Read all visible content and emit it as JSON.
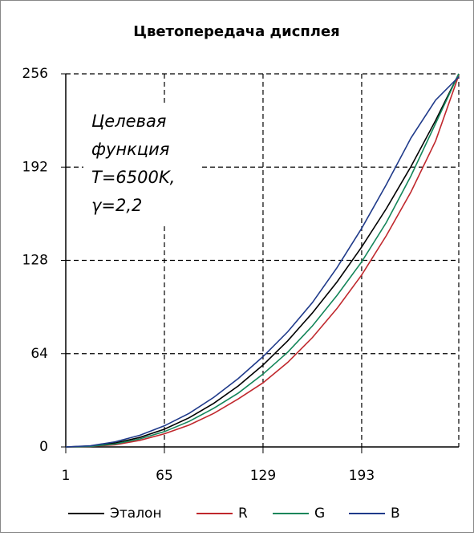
{
  "chart_data": {
    "type": "line",
    "title": "Цветопередача дисплея",
    "annotation": [
      "Целевая",
      "функция",
      "T=6500K,",
      "γ=2,2"
    ],
    "x": [
      1,
      17,
      33,
      49,
      65,
      81,
      97,
      113,
      129,
      145,
      161,
      177,
      193,
      209,
      225,
      241,
      256
    ],
    "series": [
      {
        "name": "Эталон",
        "color": "#000000",
        "values": [
          0,
          0.6,
          2.7,
          6.5,
          12.2,
          20,
          29.9,
          41.9,
          56.2,
          72.8,
          91.9,
          113.2,
          137.2,
          163.5,
          192.4,
          224.1,
          256
        ]
      },
      {
        "name": "R",
        "color": "#c0282d",
        "values": [
          0,
          0.3,
          1.5,
          4.5,
          9,
          15,
          23,
          33,
          44,
          58,
          75,
          95,
          118,
          145,
          175,
          210,
          255
        ]
      },
      {
        "name": "G",
        "color": "#14865a",
        "values": [
          0,
          0.4,
          2,
          5.5,
          10.5,
          17.5,
          26.5,
          37,
          50,
          65,
          83,
          104,
          127,
          154,
          186,
          222,
          256
        ]
      },
      {
        "name": "B",
        "color": "#1f3a8a",
        "values": [
          0,
          0.8,
          3.5,
          8,
          14.5,
          23,
          34,
          47,
          62,
          79,
          99,
          123,
          150,
          180,
          212,
          238,
          254
        ]
      }
    ],
    "xlim": [
      1,
      256
    ],
    "xticks": [
      1,
      65,
      129,
      193
    ],
    "ylim": [
      0,
      256
    ],
    "yticks": [
      0,
      64,
      128,
      192,
      256
    ],
    "grid": true,
    "legend": "bottom"
  }
}
